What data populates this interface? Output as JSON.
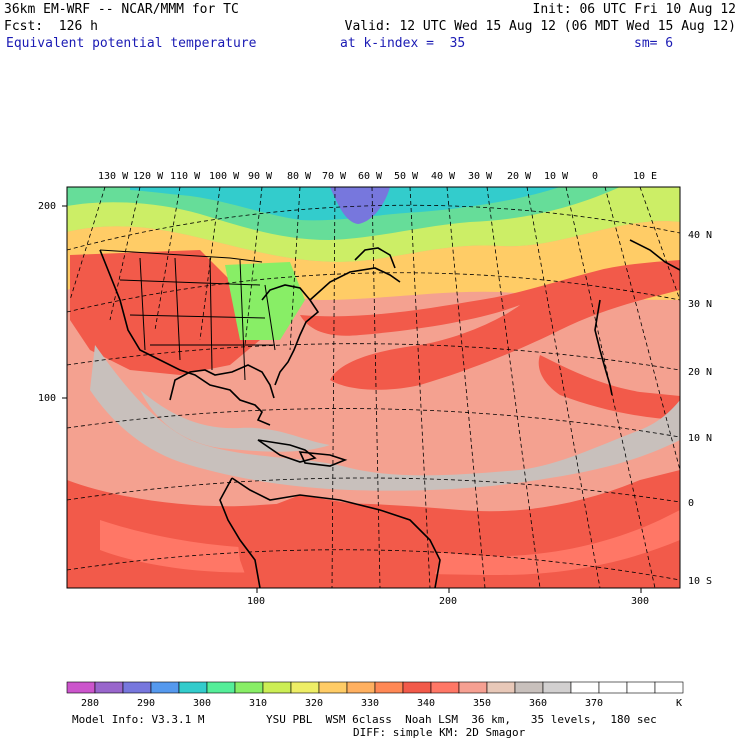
{
  "header": {
    "model_title": "36km EM-WRF -- NCAR/MMM for TC",
    "init": "Init: 06 UTC Fri 10 Aug 12",
    "forecast": "Fcst:  126 h",
    "valid": "Valid: 12 UTC Wed 15 Aug 12 (06 MDT Wed 15 Aug 12)",
    "field": "Equivalent potential temperature",
    "level": "at k-index =  35",
    "smoothing": "sm= 6"
  },
  "longitude_labels": [
    "130 W",
    "120 W",
    "110 W",
    "100 W",
    "90 W",
    "80 W",
    "70 W",
    "60 W",
    "50 W",
    "40 W",
    "30 W",
    "20 W",
    "10 W",
    "0",
    "10 E"
  ],
  "latitude_labels": [
    "40 N",
    "30 N",
    "20 N",
    "10 N",
    "0",
    "10 S"
  ],
  "grid_y_labels": [
    "200",
    "100"
  ],
  "grid_x_labels": [
    "100",
    "200",
    "300"
  ],
  "colorbar": {
    "labels": [
      "280",
      "290",
      "300",
      "310",
      "320",
      "330",
      "340",
      "350",
      "360",
      "370"
    ],
    "unit": "K",
    "colors": [
      "#cc55cc",
      "#9966cc",
      "#7777dd",
      "#5599ee",
      "#33cccc",
      "#55ee99",
      "#88ee66",
      "#ccee55",
      "#eeee66",
      "#ffcc66",
      "#ffb060",
      "#ff8855",
      "#f25a4a",
      "#ff7766",
      "#f6a092",
      "#e8c8b8",
      "#c8c0bc",
      "#d2d0d0",
      "#ffffff",
      "#ffffff",
      "#ffffff",
      "#ffffff"
    ]
  },
  "footer": {
    "model_info": "Model Info: V3.3.1 M",
    "physics": "YSU PBL  WSM 6class  Noah LSM  36 km,   35 levels,  180 sec",
    "diffusion": "DIFF: simple KM: 2D Smagor"
  }
}
